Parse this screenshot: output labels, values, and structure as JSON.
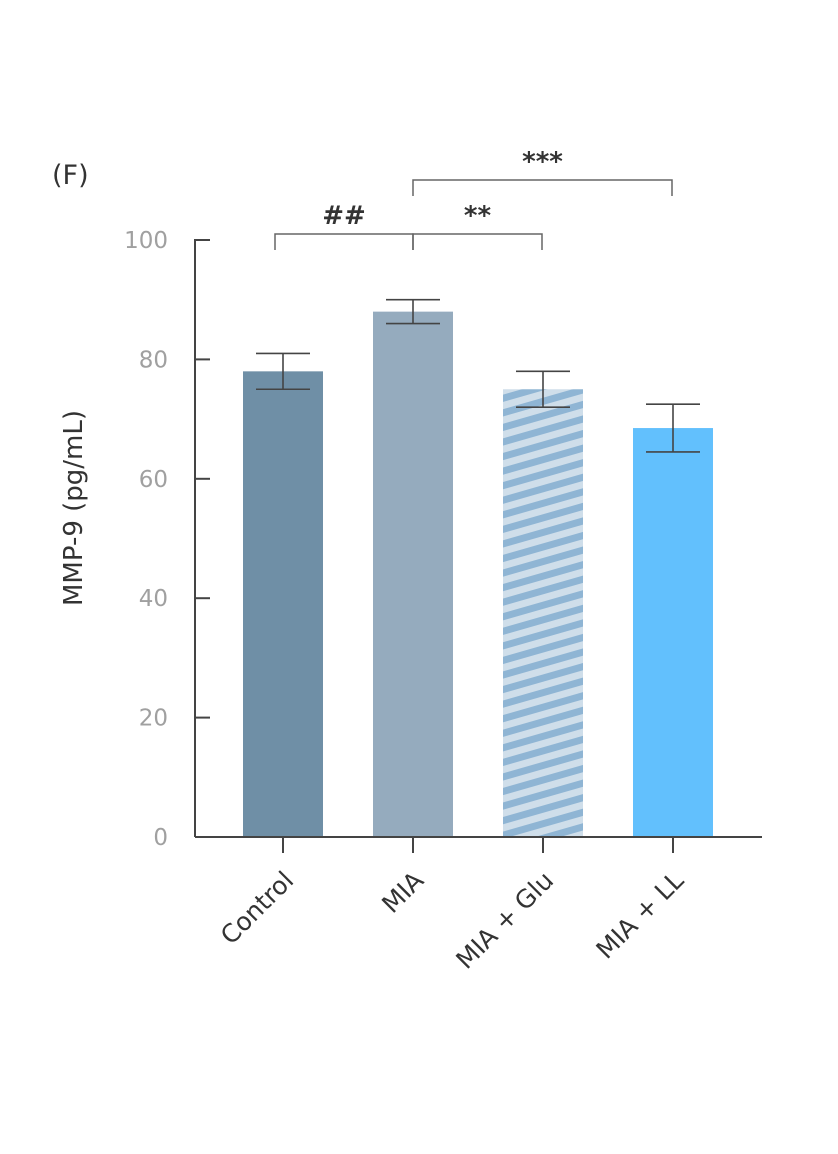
{
  "chart_data": {
    "type": "bar",
    "panel_label": "(F)",
    "title": "",
    "xlabel": "",
    "ylabel": "MMP-9 (pg/mL)",
    "ylim": [
      0,
      100
    ],
    "yticks": [
      0,
      20,
      40,
      60,
      80,
      100
    ],
    "grid": false,
    "categories": [
      "Control",
      "MIA",
      "MIA + Glu",
      "MIA + LL"
    ],
    "values": [
      78,
      88,
      75,
      68.5
    ],
    "errors": [
      3,
      2,
      3,
      4
    ],
    "bar_styles": [
      {
        "fill": "#6f8fa6",
        "pattern": "solid"
      },
      {
        "fill": "#95abbe",
        "pattern": "solid"
      },
      {
        "fill": "#cfdeea",
        "stripe": "#8fb5d4",
        "pattern": "diagonal-stripes"
      },
      {
        "fill": "#62c0fd",
        "pattern": "solid"
      }
    ],
    "significance": [
      {
        "from": 0,
        "to": 1,
        "label": "##",
        "level": 1
      },
      {
        "from": 1,
        "to": 2,
        "label": "**",
        "level": 1
      },
      {
        "from": 1,
        "to": 3,
        "label": "***",
        "level": 2
      }
    ]
  }
}
